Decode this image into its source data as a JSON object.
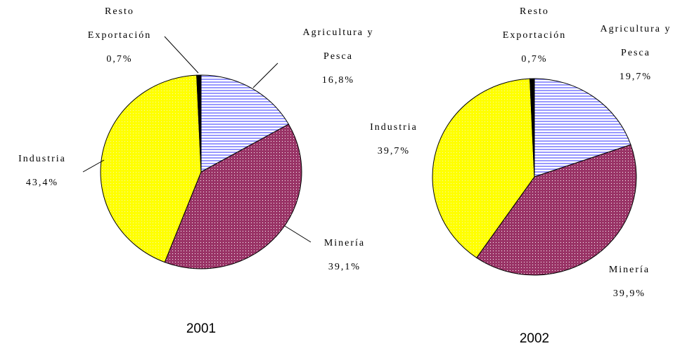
{
  "chart_data": [
    {
      "type": "pie",
      "title": "2001",
      "categories": [
        "Agricultura y Pesca",
        "Minería",
        "Industria",
        "Resto Exportación"
      ],
      "values": [
        16.8,
        39.1,
        43.4,
        0.7
      ],
      "value_labels": [
        "16,8%",
        "39,1%",
        "43,4%",
        "0,7%"
      ],
      "colors": [
        "#9999ff",
        "#993366",
        "#ffff00",
        "#000000"
      ]
    },
    {
      "type": "pie",
      "title": "2002",
      "categories": [
        "Agricultura y Pesca",
        "Minería",
        "Industria",
        "Resto Exportación"
      ],
      "values": [
        19.7,
        39.9,
        39.7,
        0.7
      ],
      "value_labels": [
        "19,7%",
        "39,9%",
        "39,7%",
        "0,7%"
      ],
      "colors": [
        "#9999ff",
        "#993366",
        "#ffff00",
        "#000000"
      ]
    }
  ]
}
